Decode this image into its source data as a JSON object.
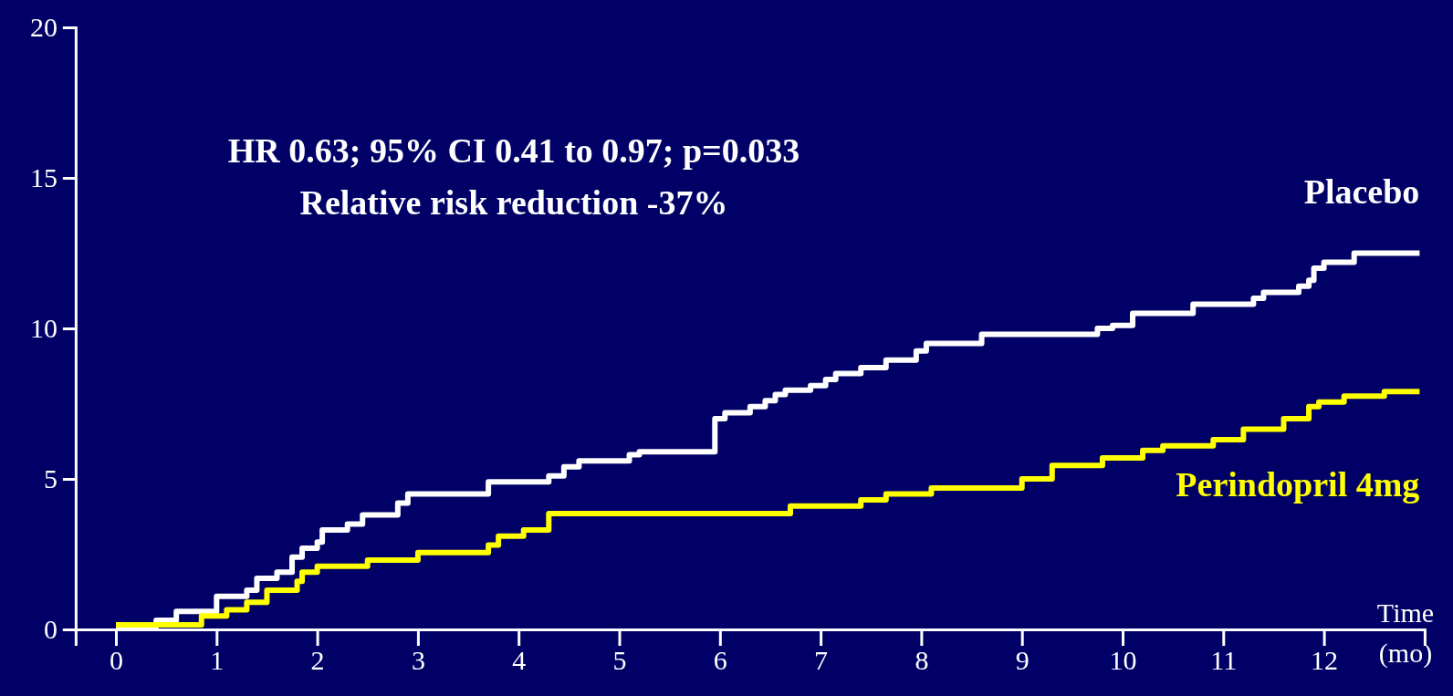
{
  "chart_data": {
    "type": "step",
    "xlabel": "Time (mo)",
    "xlim": [
      -0.4,
      13
    ],
    "xticks": [
      0,
      1,
      2,
      3,
      4,
      5,
      6,
      7,
      8,
      9,
      10,
      11,
      12
    ],
    "ylim": [
      0,
      20
    ],
    "yticks": [
      0,
      5,
      10,
      15,
      20
    ],
    "grid": false,
    "legend": false,
    "marker": "none",
    "line_style": "solid",
    "annotations": [
      "HR 0.63; 95% CI 0.41 to 0.97; p=0.033",
      "Relative risk reduction -37%"
    ],
    "series": [
      {
        "name": "Placebo",
        "color": "#ffffff",
        "x": [
          0,
          0.4,
          0.6,
          1.0,
          1.3,
          1.4,
          1.6,
          1.75,
          1.85,
          2.0,
          2.05,
          2.3,
          2.45,
          2.8,
          2.9,
          3.7,
          4.3,
          4.45,
          4.6,
          5.1,
          5.2,
          5.95,
          6.05,
          6.3,
          6.45,
          6.55,
          6.65,
          6.9,
          7.05,
          7.15,
          7.4,
          7.65,
          7.95,
          8.05,
          8.6,
          9.75,
          9.9,
          10.1,
          10.7,
          11.3,
          11.4,
          11.75,
          11.85,
          11.9,
          12.0,
          12.3,
          12.95
        ],
        "values": [
          0.1,
          0.3,
          0.6,
          1.1,
          1.3,
          1.7,
          1.9,
          2.4,
          2.7,
          2.9,
          3.3,
          3.5,
          3.8,
          4.2,
          4.5,
          4.9,
          5.1,
          5.4,
          5.6,
          5.8,
          5.9,
          7.0,
          7.2,
          7.4,
          7.6,
          7.8,
          7.95,
          8.1,
          8.3,
          8.5,
          8.7,
          8.95,
          9.25,
          9.5,
          9.8,
          10.0,
          10.1,
          10.5,
          10.8,
          11.0,
          11.2,
          11.4,
          11.6,
          12.0,
          12.2,
          12.5,
          12.5
        ]
      },
      {
        "name": "Perindopril 4mg",
        "color": "#ffff00",
        "x": [
          0,
          0.85,
          1.1,
          1.3,
          1.5,
          1.8,
          1.85,
          2.0,
          2.5,
          3.0,
          3.7,
          3.8,
          4.05,
          4.3,
          6.7,
          7.4,
          7.65,
          8.1,
          9.0,
          9.3,
          9.8,
          10.2,
          10.4,
          10.9,
          11.2,
          11.6,
          11.85,
          11.95,
          12.2,
          12.6,
          12.95
        ],
        "values": [
          0.15,
          0.45,
          0.65,
          0.9,
          1.3,
          1.6,
          1.9,
          2.1,
          2.3,
          2.55,
          2.8,
          3.1,
          3.3,
          3.85,
          4.1,
          4.3,
          4.5,
          4.7,
          5.0,
          5.45,
          5.7,
          5.95,
          6.1,
          6.3,
          6.65,
          7.0,
          7.4,
          7.55,
          7.75,
          7.9,
          7.9
        ]
      }
    ]
  }
}
